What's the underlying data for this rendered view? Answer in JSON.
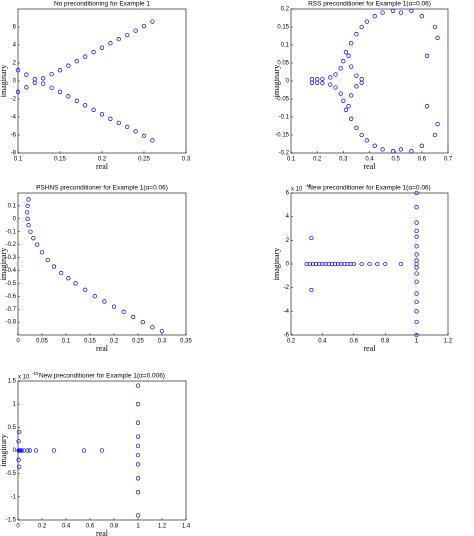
{
  "chart_data": [
    {
      "type": "scatter",
      "title": "No preconditioning for Example 1",
      "x_label": "real",
      "y_label": "imaginary",
      "color": "#0000ff",
      "marker": "open-circle",
      "x": [
        0.1,
        0.11,
        0.12,
        0.13,
        0.14,
        0.15,
        0.16,
        0.17,
        0.18,
        0.19,
        0.2,
        0.21,
        0.22,
        0.23,
        0.24,
        0.25,
        0.26,
        0.1,
        0.11,
        0.12,
        0.13,
        0.14,
        0.15,
        0.16,
        0.17,
        0.18,
        0.19,
        0.2,
        0.21,
        0.22,
        0.23,
        0.24,
        0.25,
        0.26
      ],
      "values": [
        1.2,
        0.7,
        0.2,
        -0.3,
        -0.75,
        -1.2,
        -1.7,
        -2.2,
        -2.7,
        -3.2,
        -3.7,
        -4.2,
        -4.65,
        -5.1,
        -5.6,
        -6.1,
        -6.6,
        -1.2,
        -0.7,
        -0.2,
        0.3,
        0.75,
        1.2,
        1.7,
        2.2,
        2.7,
        3.2,
        3.7,
        4.2,
        4.65,
        5.1,
        5.6,
        6.1,
        6.6
      ],
      "xlim": [
        0.1,
        0.3
      ],
      "xticks": [
        0.1,
        0.15,
        0.2,
        0.25,
        0.3
      ],
      "ylim": [
        -8,
        8
      ],
      "yticks": [
        -8,
        -6,
        -4,
        -2,
        0,
        2,
        4,
        6
      ]
    },
    {
      "type": "scatter",
      "title": "RSS preconditioner for Example 1(α=0.06)",
      "x_label": "real",
      "y_label": "imaginary",
      "color": "#0000ff",
      "marker": "open-circle",
      "x": [
        0.18,
        0.2,
        0.22,
        0.25,
        0.27,
        0.29,
        0.3,
        0.31,
        0.18,
        0.2,
        0.22,
        0.25,
        0.27,
        0.29,
        0.3,
        0.31,
        0.37,
        0.35,
        0.33,
        0.32,
        0.37,
        0.35,
        0.33,
        0.32,
        0.33,
        0.35,
        0.37,
        0.39,
        0.42,
        0.45,
        0.49,
        0.33,
        0.35,
        0.37,
        0.39,
        0.42,
        0.45,
        0.49,
        0.52,
        0.56,
        0.6,
        0.65,
        0.66,
        0.62,
        0.52,
        0.56,
        0.6,
        0.65,
        0.66,
        0.62
      ],
      "values": [
        0.005,
        0.005,
        0.006,
        0.01,
        0.018,
        0.035,
        0.055,
        0.08,
        -0.005,
        -0.005,
        -0.006,
        -0.01,
        -0.018,
        -0.035,
        -0.055,
        -0.08,
        0.005,
        0.015,
        0.04,
        0.07,
        -0.005,
        -0.015,
        -0.04,
        -0.07,
        0.105,
        0.13,
        0.15,
        0.165,
        0.18,
        0.19,
        0.195,
        -0.105,
        -0.13,
        -0.15,
        -0.165,
        -0.18,
        -0.19,
        -0.195,
        0.19,
        0.195,
        0.18,
        0.15,
        0.12,
        0.07,
        -0.19,
        -0.195,
        -0.18,
        -0.15,
        -0.12,
        -0.07
      ],
      "xlim": [
        0.1,
        0.7
      ],
      "xticks": [
        0.1,
        0.2,
        0.3,
        0.4,
        0.5,
        0.6,
        0.7
      ],
      "ylim": [
        -0.2,
        0.2
      ],
      "yticks": [
        -0.2,
        -0.15,
        -0.1,
        -0.05,
        0,
        0.05,
        0.1,
        0.15,
        0.2
      ]
    },
    {
      "type": "scatter",
      "title": "PSHNS preconditioner for Example 1(α=0.06)",
      "x_label": "real",
      "y_label": "imaginary",
      "color": "#0000ff",
      "marker": "open-circle",
      "x": [
        0.022,
        0.02,
        0.019,
        0.02,
        0.022,
        0.026,
        0.032,
        0.04,
        0.05,
        0.062,
        0.075,
        0.09,
        0.105,
        0.12,
        0.14,
        0.16,
        0.18,
        0.2,
        0.22,
        0.24,
        0.26,
        0.28,
        0.3
      ],
      "values": [
        0.15,
        0.1,
        0.05,
        0,
        -0.05,
        -0.1,
        -0.15,
        -0.2,
        -0.26,
        -0.32,
        -0.37,
        -0.42,
        -0.46,
        -0.5,
        -0.55,
        -0.6,
        -0.64,
        -0.68,
        -0.72,
        -0.76,
        -0.8,
        -0.84,
        -0.87
      ],
      "xlim": [
        0,
        0.35
      ],
      "xticks": [
        0,
        0.05,
        0.1,
        0.15,
        0.2,
        0.25,
        0.3,
        0.35
      ],
      "ylim": [
        -0.9,
        0.2
      ],
      "yticks": [
        -0.8,
        -0.7,
        -0.6,
        -0.5,
        -0.4,
        -0.3,
        -0.2,
        -0.1,
        0,
        0.1
      ]
    },
    {
      "type": "scatter",
      "title": "New preconditioner for Example 1(α=0.06)",
      "x_label": "real",
      "y_label": "imaginary",
      "y_multiplier": {
        "base": "x 10",
        "exponent": "-15"
      },
      "color": "#0000ff",
      "marker": "open-circle",
      "x": [
        0.3,
        0.32,
        0.34,
        0.36,
        0.38,
        0.4,
        0.42,
        0.44,
        0.46,
        0.48,
        0.5,
        0.52,
        0.54,
        0.56,
        0.58,
        0.6,
        0.65,
        0.7,
        0.75,
        0.8,
        0.9,
        0.33,
        0.33,
        1,
        1,
        1,
        1,
        1,
        1,
        1,
        1,
        1,
        1,
        1,
        1,
        1,
        1,
        1,
        1,
        1
      ],
      "values": [
        0,
        0,
        0,
        0,
        0,
        0,
        0,
        0,
        0,
        0,
        0,
        0,
        0,
        0,
        0,
        0,
        0,
        0,
        0,
        0,
        0,
        2.2,
        -2.2,
        6,
        4.8,
        3.5,
        2.8,
        2.3,
        1.5,
        0.8,
        0.3,
        0,
        -0.3,
        -0.8,
        -1.5,
        -2.5,
        -3.2,
        -4,
        -4.9,
        -6
      ],
      "xlim": [
        0.2,
        1.2
      ],
      "xticks": [
        0.2,
        0.4,
        0.6,
        0.8,
        1,
        1.2
      ],
      "ylim": [
        -6,
        6
      ],
      "yticks": [
        -6,
        -4,
        -2,
        0,
        2,
        4,
        6
      ]
    },
    {
      "type": "scatter",
      "title": "New preconditioner for Example 1(α=0.006)",
      "x_label": "real",
      "y_label": "imaginary",
      "y_multiplier": {
        "base": "x 10",
        "exponent": "-15"
      },
      "color": "#0000ff",
      "marker": "open-circle",
      "x": [
        0.005,
        0.01,
        0.015,
        0.02,
        0.005,
        0.005,
        0.01,
        0.01,
        0.03,
        0.05,
        0.08,
        0.1,
        0.15,
        0.3,
        0.55,
        0.7,
        1,
        1,
        1,
        1,
        1,
        1,
        1,
        1,
        1,
        1
      ],
      "values": [
        0,
        0,
        0,
        0,
        0.2,
        -0.2,
        0.4,
        -0.35,
        0,
        0,
        0,
        0,
        0,
        0,
        0,
        0,
        1.4,
        1,
        0.6,
        0.3,
        0.1,
        -0.1,
        -0.3,
        -0.6,
        -0.9,
        -1.4
      ],
      "xlim": [
        0,
        1.4
      ],
      "xticks": [
        0,
        0.2,
        0.4,
        0.6,
        0.8,
        1,
        1.2,
        1.4
      ],
      "ylim": [
        -1.5,
        1.5
      ],
      "yticks": [
        -1.5,
        -1,
        -0.5,
        0,
        0.5,
        1,
        1.5
      ]
    }
  ]
}
